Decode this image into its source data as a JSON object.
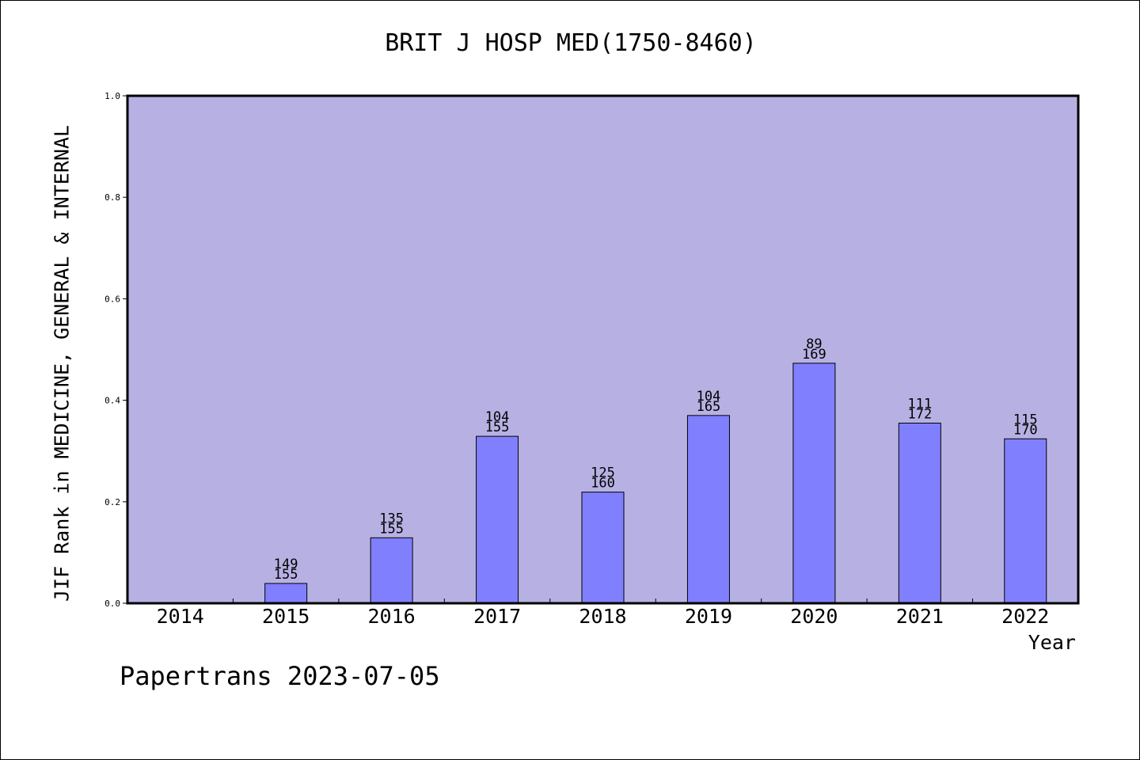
{
  "chart_data": {
    "type": "bar",
    "title": "BRIT J HOSP MED(1750-8460)",
    "ylabel": "JIF Rank in MEDICINE, GENERAL & INTERNAL",
    "xlabel": "Year",
    "ylim": [
      0,
      1
    ],
    "yticks": [
      "0.0",
      "0.2",
      "0.4",
      "0.6",
      "0.8",
      "1.0"
    ],
    "categories": [
      "2014",
      "2015",
      "2016",
      "2017",
      "2018",
      "2019",
      "2020",
      "2021",
      "2022"
    ],
    "values": [
      null,
      0.039,
      0.129,
      0.329,
      0.219,
      0.37,
      0.473,
      0.355,
      0.324
    ],
    "labels": [
      null,
      [
        "149",
        "155"
      ],
      [
        "135",
        "155"
      ],
      [
        "104",
        "155"
      ],
      [
        "125",
        "160"
      ],
      [
        "104",
        "165"
      ],
      [
        "89",
        "169"
      ],
      [
        "111",
        "172"
      ],
      [
        "115",
        "170"
      ]
    ],
    "colors": {
      "plot_background": "#b7b1e3",
      "bar_fill": "#8080ff",
      "bar_stroke": "#000000"
    },
    "grid": false,
    "legend": "none"
  },
  "footer": {
    "text": "Papertrans 2023-07-05"
  }
}
